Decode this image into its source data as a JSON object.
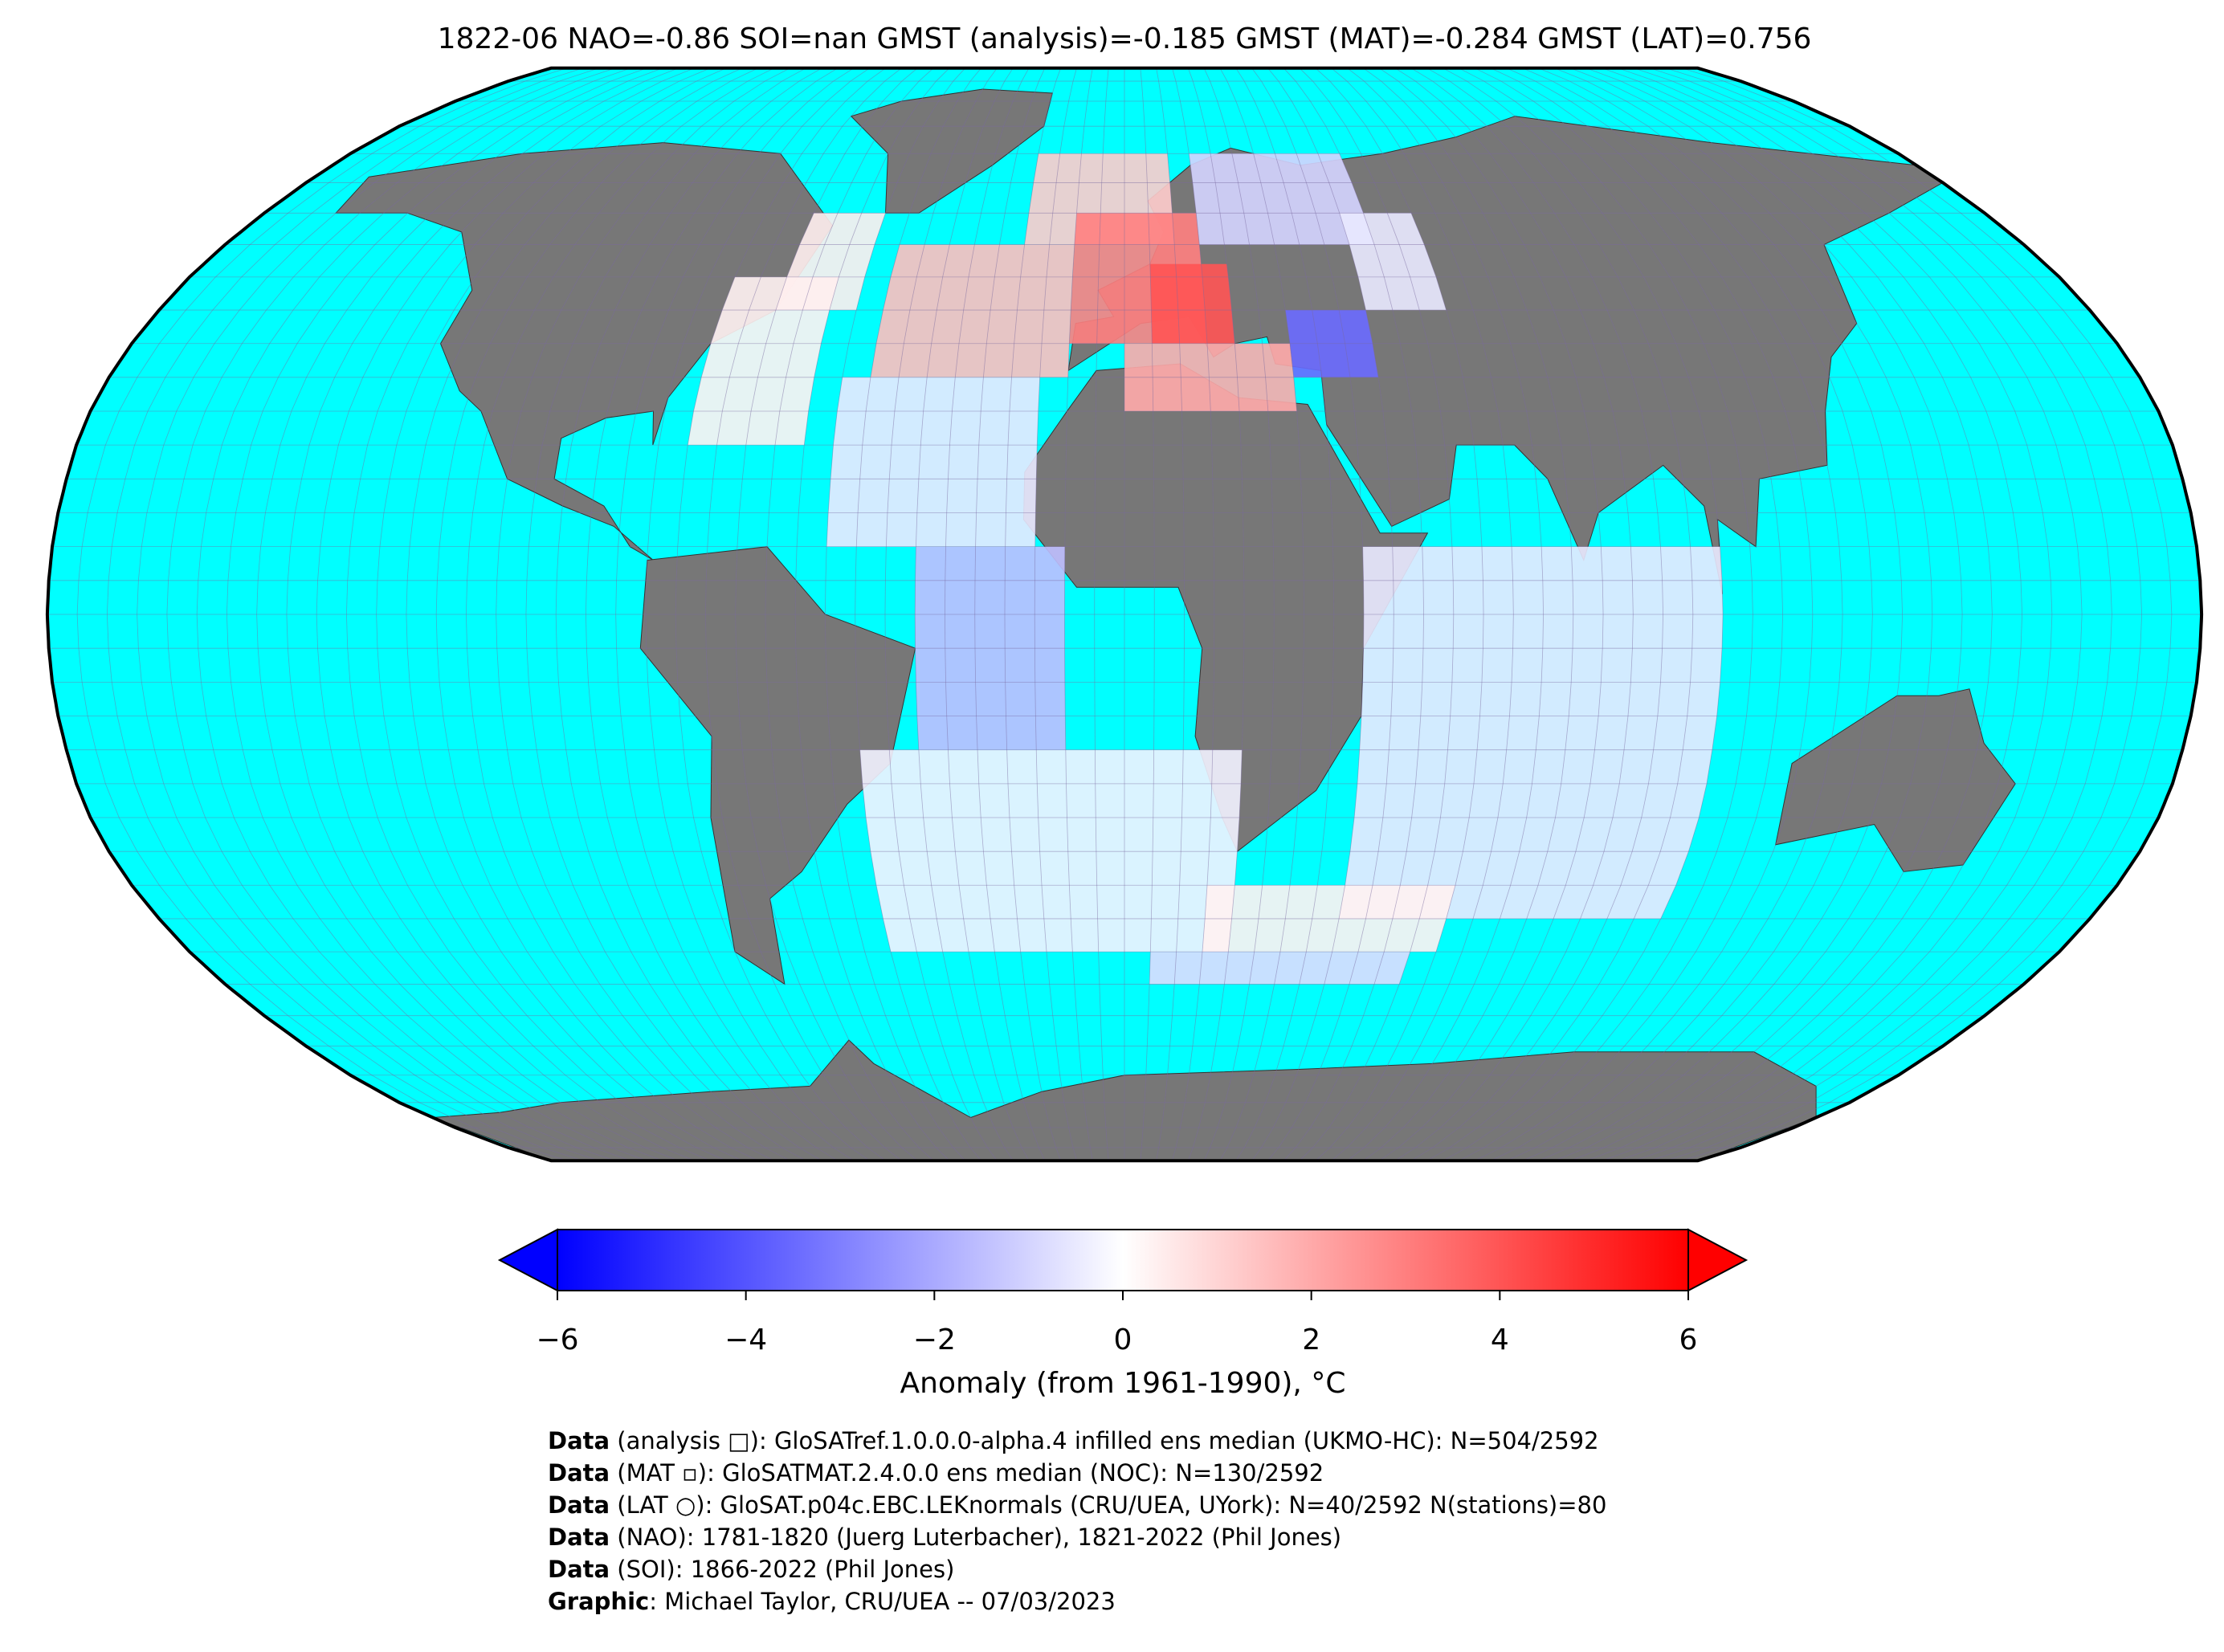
{
  "title": "1822-06 NAO=-0.86 SOI=nan GMST (analysis)=-0.185 GMST (MAT)=-0.284 GMST (LAT)=0.756",
  "anomaly_cells": [
    {
      "lon": [
        -75,
        -55
      ],
      "lat": [
        25,
        50
      ],
      "value": 0.3
    },
    {
      "lon": [
        -65,
        -50
      ],
      "lat": [
        45,
        60
      ],
      "value": 0.4
    },
    {
      "lon": [
        -45,
        -10
      ],
      "lat": [
        35,
        55
      ],
      "value": 1.5
    },
    {
      "lon": [
        -20,
        10
      ],
      "lat": [
        55,
        70
      ],
      "value": 1.2
    },
    {
      "lon": [
        -10,
        15
      ],
      "lat": [
        40,
        60
      ],
      "value": 3
    },
    {
      "lon": [
        5,
        20
      ],
      "lat": [
        40,
        52
      ],
      "value": 4
    },
    {
      "lon": [
        0,
        30
      ],
      "lat": [
        30,
        40
      ],
      "value": 2
    },
    {
      "lon": [
        15,
        50
      ],
      "lat": [
        55,
        70
      ],
      "value": -1
    },
    {
      "lon": [
        30,
        45
      ],
      "lat": [
        35,
        45
      ],
      "value": -3.5
    },
    {
      "lon": [
        45,
        60
      ],
      "lat": [
        45,
        60
      ],
      "value": -0.5
    },
    {
      "lon": [
        -50,
        -15
      ],
      "lat": [
        10,
        35
      ],
      "value": -0.5
    },
    {
      "lon": [
        -35,
        -10
      ],
      "lat": [
        -20,
        10
      ],
      "value": -1.5
    },
    {
      "lon": [
        -45,
        20
      ],
      "lat": [
        -50,
        -20
      ],
      "value": -0.3
    },
    {
      "lon": [
        40,
        100
      ],
      "lat": [
        -45,
        10
      ],
      "value": -0.5
    },
    {
      "lon": [
        15,
        60
      ],
      "lat": [
        -50,
        -40
      ],
      "value": 0.3
    },
    {
      "lon": [
        5,
        55
      ],
      "lat": [
        -55,
        -50
      ],
      "value": -0.8
    }
  ],
  "colorbar": {
    "lim": [
      -6,
      6
    ],
    "ticks": [
      {
        "value": -6,
        "label": "−6"
      },
      {
        "value": -4,
        "label": "−4"
      },
      {
        "value": -2,
        "label": "−2"
      },
      0,
      2,
      4,
      6
    ],
    "label": "Anomaly (from 1961-1990), °C"
  },
  "credits": [
    {
      "bold": "Data",
      "text": " (analysis □): GloSATref.1.0.0.0-alpha.4 infilled ens median (UKMO-HC): N=504/2592"
    },
    {
      "bold": "Data",
      "text": " (MAT ▫): GloSATMAT.2.4.0.0 ens median (NOC): N=130/2592"
    },
    {
      "bold": "Data",
      "text": " (LAT ○): GloSAT.p04c.EBC.LEKnormals (CRU/UEA, UYork): N=40/2592 N(stations)=80"
    },
    {
      "bold": "Data",
      "text": " (NAO): 1781-1820 (Juerg Luterbacher), 1821-2022 (Phil Jones)"
    },
    {
      "bold": "Data",
      "text": " (SOI): 1866-2022 (Phil Jones)"
    },
    {
      "bold": "Graphic",
      "text": ": Michael Taylor, CRU/UEA -- 07/03/2023"
    }
  ]
}
